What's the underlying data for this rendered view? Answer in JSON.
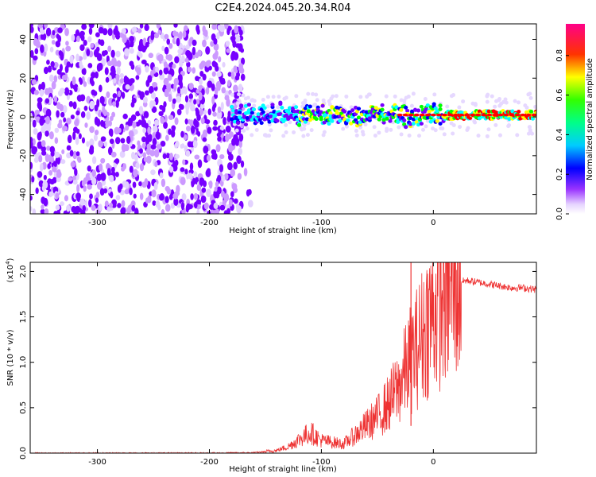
{
  "chart_data": [
    {
      "type": "heatmap",
      "title": "C2E4.2024.045.20.34.R04",
      "xlabel": "Height of straight line (km)",
      "ylabel": "Frequency (Hz)",
      "xlim": [
        -360,
        92
      ],
      "ylim": [
        -50,
        48
      ],
      "xticks": [
        "-300",
        "-200",
        "-100",
        "0"
      ],
      "yticks": [
        "-40",
        "-20",
        "0",
        "20",
        "40"
      ],
      "colorbar": {
        "label": "Normalized spectral amplitude",
        "range": [
          0.0,
          0.96
        ],
        "ticks": [
          "0.0",
          "0.2",
          "0.4",
          "0.6",
          "0.8"
        ],
        "colormap": [
          "#ffffff",
          "#cc99ff",
          "#7700ff",
          "#0000ff",
          "#00ffff",
          "#00ff00",
          "#ffff00",
          "#ff0000",
          "#ff00aa"
        ]
      },
      "features": {
        "noise_region_km": [
          -360,
          -170
        ],
        "signal_band_km": [
          -180,
          92
        ],
        "signal_center_freq_hz": 1,
        "signal_band_halfwidth_hz": 3
      }
    },
    {
      "type": "line",
      "xlabel": "Height of straight line (km)",
      "ylabel": "SNR (10 * v/v)",
      "multiplier": "(x10",
      "multiplier_exp": "4",
      "xlim": [
        -360,
        92
      ],
      "ylim": [
        0,
        2.1
      ],
      "xticks": [
        "-300",
        "-200",
        "-100",
        "0"
      ],
      "yticks": [
        "0.0",
        "0.5",
        "1.0",
        "1.5",
        "2.0"
      ],
      "color": "#ee3333",
      "series": [
        {
          "x": [
            -360,
            -300,
            -250,
            -200,
            -160,
            -140,
            -130,
            -120,
            -110,
            -100,
            -90,
            -80,
            -70,
            -60,
            -50,
            -40,
            -30,
            -25,
            -20,
            -15,
            -10,
            -5,
            0,
            10,
            20,
            30,
            40,
            50,
            60,
            70,
            80,
            92
          ],
          "y": [
            0.0,
            0.0,
            0.0,
            0.0,
            0.005,
            0.03,
            0.07,
            0.15,
            0.23,
            0.14,
            0.12,
            0.1,
            0.2,
            0.3,
            0.4,
            0.55,
            0.75,
            0.9,
            1.05,
            1.15,
            1.3,
            1.45,
            1.55,
            1.75,
            1.88,
            1.9,
            1.88,
            1.86,
            1.84,
            1.82,
            1.82,
            1.8
          ]
        }
      ],
      "spike": {
        "x": -20,
        "y": 2.1
      }
    }
  ]
}
